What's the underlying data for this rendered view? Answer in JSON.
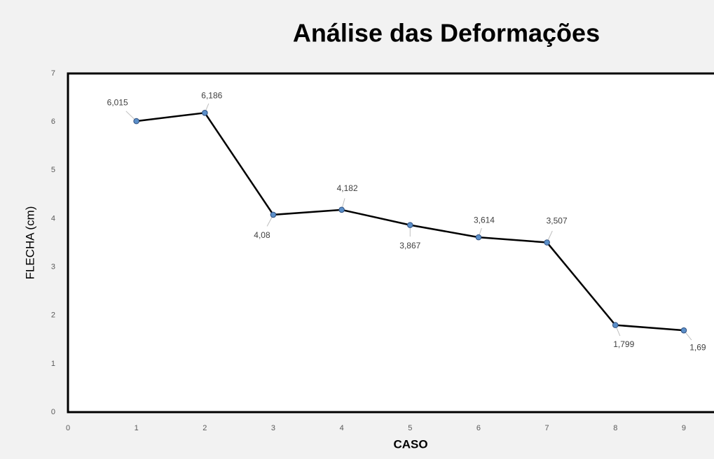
{
  "chart_data": {
    "type": "line",
    "title": "Análise das Deformações",
    "x_label": "CASO",
    "y_label": "FLECHA (cm)",
    "x": [
      1,
      2,
      3,
      4,
      5,
      6,
      7,
      8,
      9
    ],
    "series": [
      {
        "name": "FLECHA (cm)",
        "color": "#000000",
        "marker_color": "#5b8fc9",
        "values": [
          6.015,
          6.186,
          4.08,
          4.182,
          3.867,
          3.614,
          3.507,
          1.799,
          1.69
        ],
        "value_labels": [
          "6,015",
          "6,186",
          "4,08",
          "4,182",
          "3,867",
          "3,614",
          "3,507",
          "1,799",
          "1,69"
        ]
      }
    ],
    "xlim": [
      0,
      9.4
    ],
    "ylim": [
      0,
      7
    ],
    "xticks": [
      0,
      1,
      2,
      3,
      4,
      5,
      6,
      7,
      8,
      9
    ],
    "yticks": [
      0,
      1,
      2,
      3,
      4,
      5,
      6,
      7
    ],
    "grid": false,
    "legend": false
  }
}
